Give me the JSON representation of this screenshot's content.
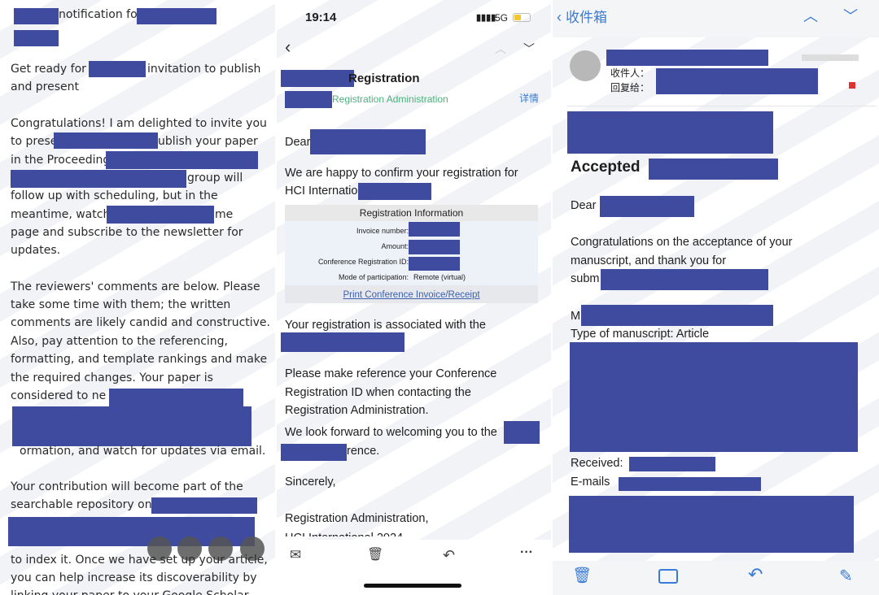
{
  "left": {
    "lines": [
      "notification fo",
      "Get ready for",
      "invitation to publish",
      "and present",
      "Congratulations! I am delighted to invite you",
      "to prese",
      "ublish your paper",
      "in the Proceeding",
      "group will",
      "follow up with scheduling, but in the",
      "meantime, watch",
      "me",
      "page and subscribe to the newsletter for",
      "updates.",
      "The reviewers' comments are below. Please",
      "take some time with them; the written",
      "comments are likely candid and constructive.",
      "Also, pay attention to the referencing,",
      "formatting, and template rankings and make",
      "the required changes. Your paper is",
      "considered to ne",
      "ormation, and watch for updates via email.",
      "Your contribution will become part of the",
      "searchable repository on",
      "to index it. Once we have set up your article,",
      "you can help increase its discoverability by",
      "linking your paper to your Google Scholar"
    ]
  },
  "middle": {
    "status": {
      "time": "19:14",
      "network": "5G"
    },
    "subject_suffix": "Registration",
    "sender": "Registration Administration",
    "details_link": "详情",
    "greeting": "Dear",
    "body1": [
      "We are happy to confirm your registration for",
      "HCI Internatio"
    ],
    "table": {
      "header": "Registration Information",
      "invoice_label": "Invoice number:",
      "amount_label": "Amount:",
      "reg_id_label": "Conference Registration ID:",
      "mode_label": "Mode of participation:",
      "mode_value": "Remote (virtual)",
      "print_link": "Print Conference Invoice/Receipt"
    },
    "body2": "Your registration is associated with the",
    "body3": [
      "Please make reference your Conference",
      "Registration ID when contacting the",
      "Registration Administration."
    ],
    "body4": [
      "We look forward to welcoming you to the",
      "rence."
    ],
    "closing": "Sincerely,",
    "signature": [
      "Registration Administration,",
      "HCI International 2024"
    ]
  },
  "right": {
    "back_label": "收件箱",
    "to_label": "收件人：",
    "reply_to_label": "回复给：",
    "subject_word": "Accepted",
    "greeting": "Dear",
    "body": [
      "Congratulations on the acceptance of your",
      "manuscript, and thank you for",
      "subm"
    ],
    "m_prefix": "M",
    "type_line": "Type of manuscript: Article",
    "received_label": "Received:",
    "emails_label": "E-mails"
  },
  "colors": {
    "redaction": "#3f4b9e",
    "accent_blue": "#3a7bd5",
    "sender_green": "#4caf7d",
    "link": "#3c5fb0"
  }
}
